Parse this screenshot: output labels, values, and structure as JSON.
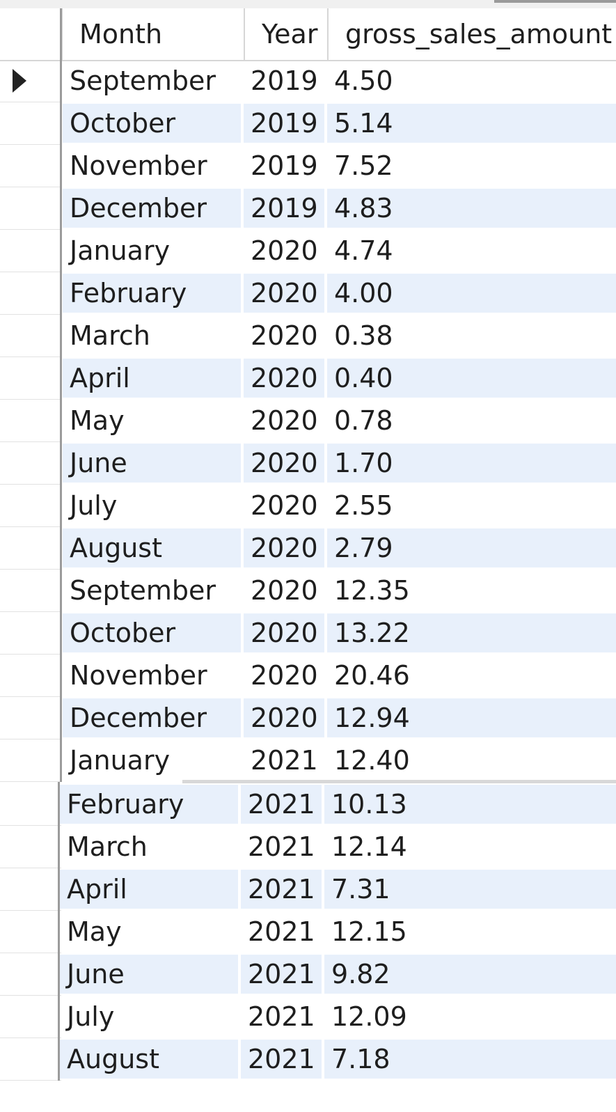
{
  "columns": [
    "Month",
    "Year",
    "gross_sales_amount"
  ],
  "rows": [
    {
      "month": "September",
      "year": "2019",
      "gross_sales_amount": "4.50"
    },
    {
      "month": "October",
      "year": "2019",
      "gross_sales_amount": "5.14"
    },
    {
      "month": "November",
      "year": "2019",
      "gross_sales_amount": "7.52"
    },
    {
      "month": "December",
      "year": "2019",
      "gross_sales_amount": "4.83"
    },
    {
      "month": "January",
      "year": "2020",
      "gross_sales_amount": "4.74"
    },
    {
      "month": "February",
      "year": "2020",
      "gross_sales_amount": "4.00"
    },
    {
      "month": "March",
      "year": "2020",
      "gross_sales_amount": "0.38"
    },
    {
      "month": "April",
      "year": "2020",
      "gross_sales_amount": "0.40"
    },
    {
      "month": "May",
      "year": "2020",
      "gross_sales_amount": "0.78"
    },
    {
      "month": "June",
      "year": "2020",
      "gross_sales_amount": "1.70"
    },
    {
      "month": "July",
      "year": "2020",
      "gross_sales_amount": "2.55"
    },
    {
      "month": "August",
      "year": "2020",
      "gross_sales_amount": "2.79"
    },
    {
      "month": "September",
      "year": "2020",
      "gross_sales_amount": "12.35"
    },
    {
      "month": "October",
      "year": "2020",
      "gross_sales_amount": "13.22"
    },
    {
      "month": "November",
      "year": "2020",
      "gross_sales_amount": "20.46"
    },
    {
      "month": "December",
      "year": "2020",
      "gross_sales_amount": "12.94"
    },
    {
      "month": "January",
      "year": "2021",
      "gross_sales_amount": "12.40"
    },
    {
      "month": "February",
      "year": "2021",
      "gross_sales_amount": "10.13"
    },
    {
      "month": "March",
      "year": "2021",
      "gross_sales_amount": "12.14"
    },
    {
      "month": "April",
      "year": "2021",
      "gross_sales_amount": "7.31"
    },
    {
      "month": "May",
      "year": "2021",
      "gross_sales_amount": "12.15"
    },
    {
      "month": "June",
      "year": "2021",
      "gross_sales_amount": "9.82"
    },
    {
      "month": "July",
      "year": "2021",
      "gross_sales_amount": "12.09"
    },
    {
      "month": "August",
      "year": "2021",
      "gross_sales_amount": "7.18"
    }
  ],
  "selected_row_index": 0,
  "colors": {
    "row_alt_background": "#e8f0fb",
    "grid_line": "#d6d6d6",
    "text": "#1e1e1e"
  }
}
